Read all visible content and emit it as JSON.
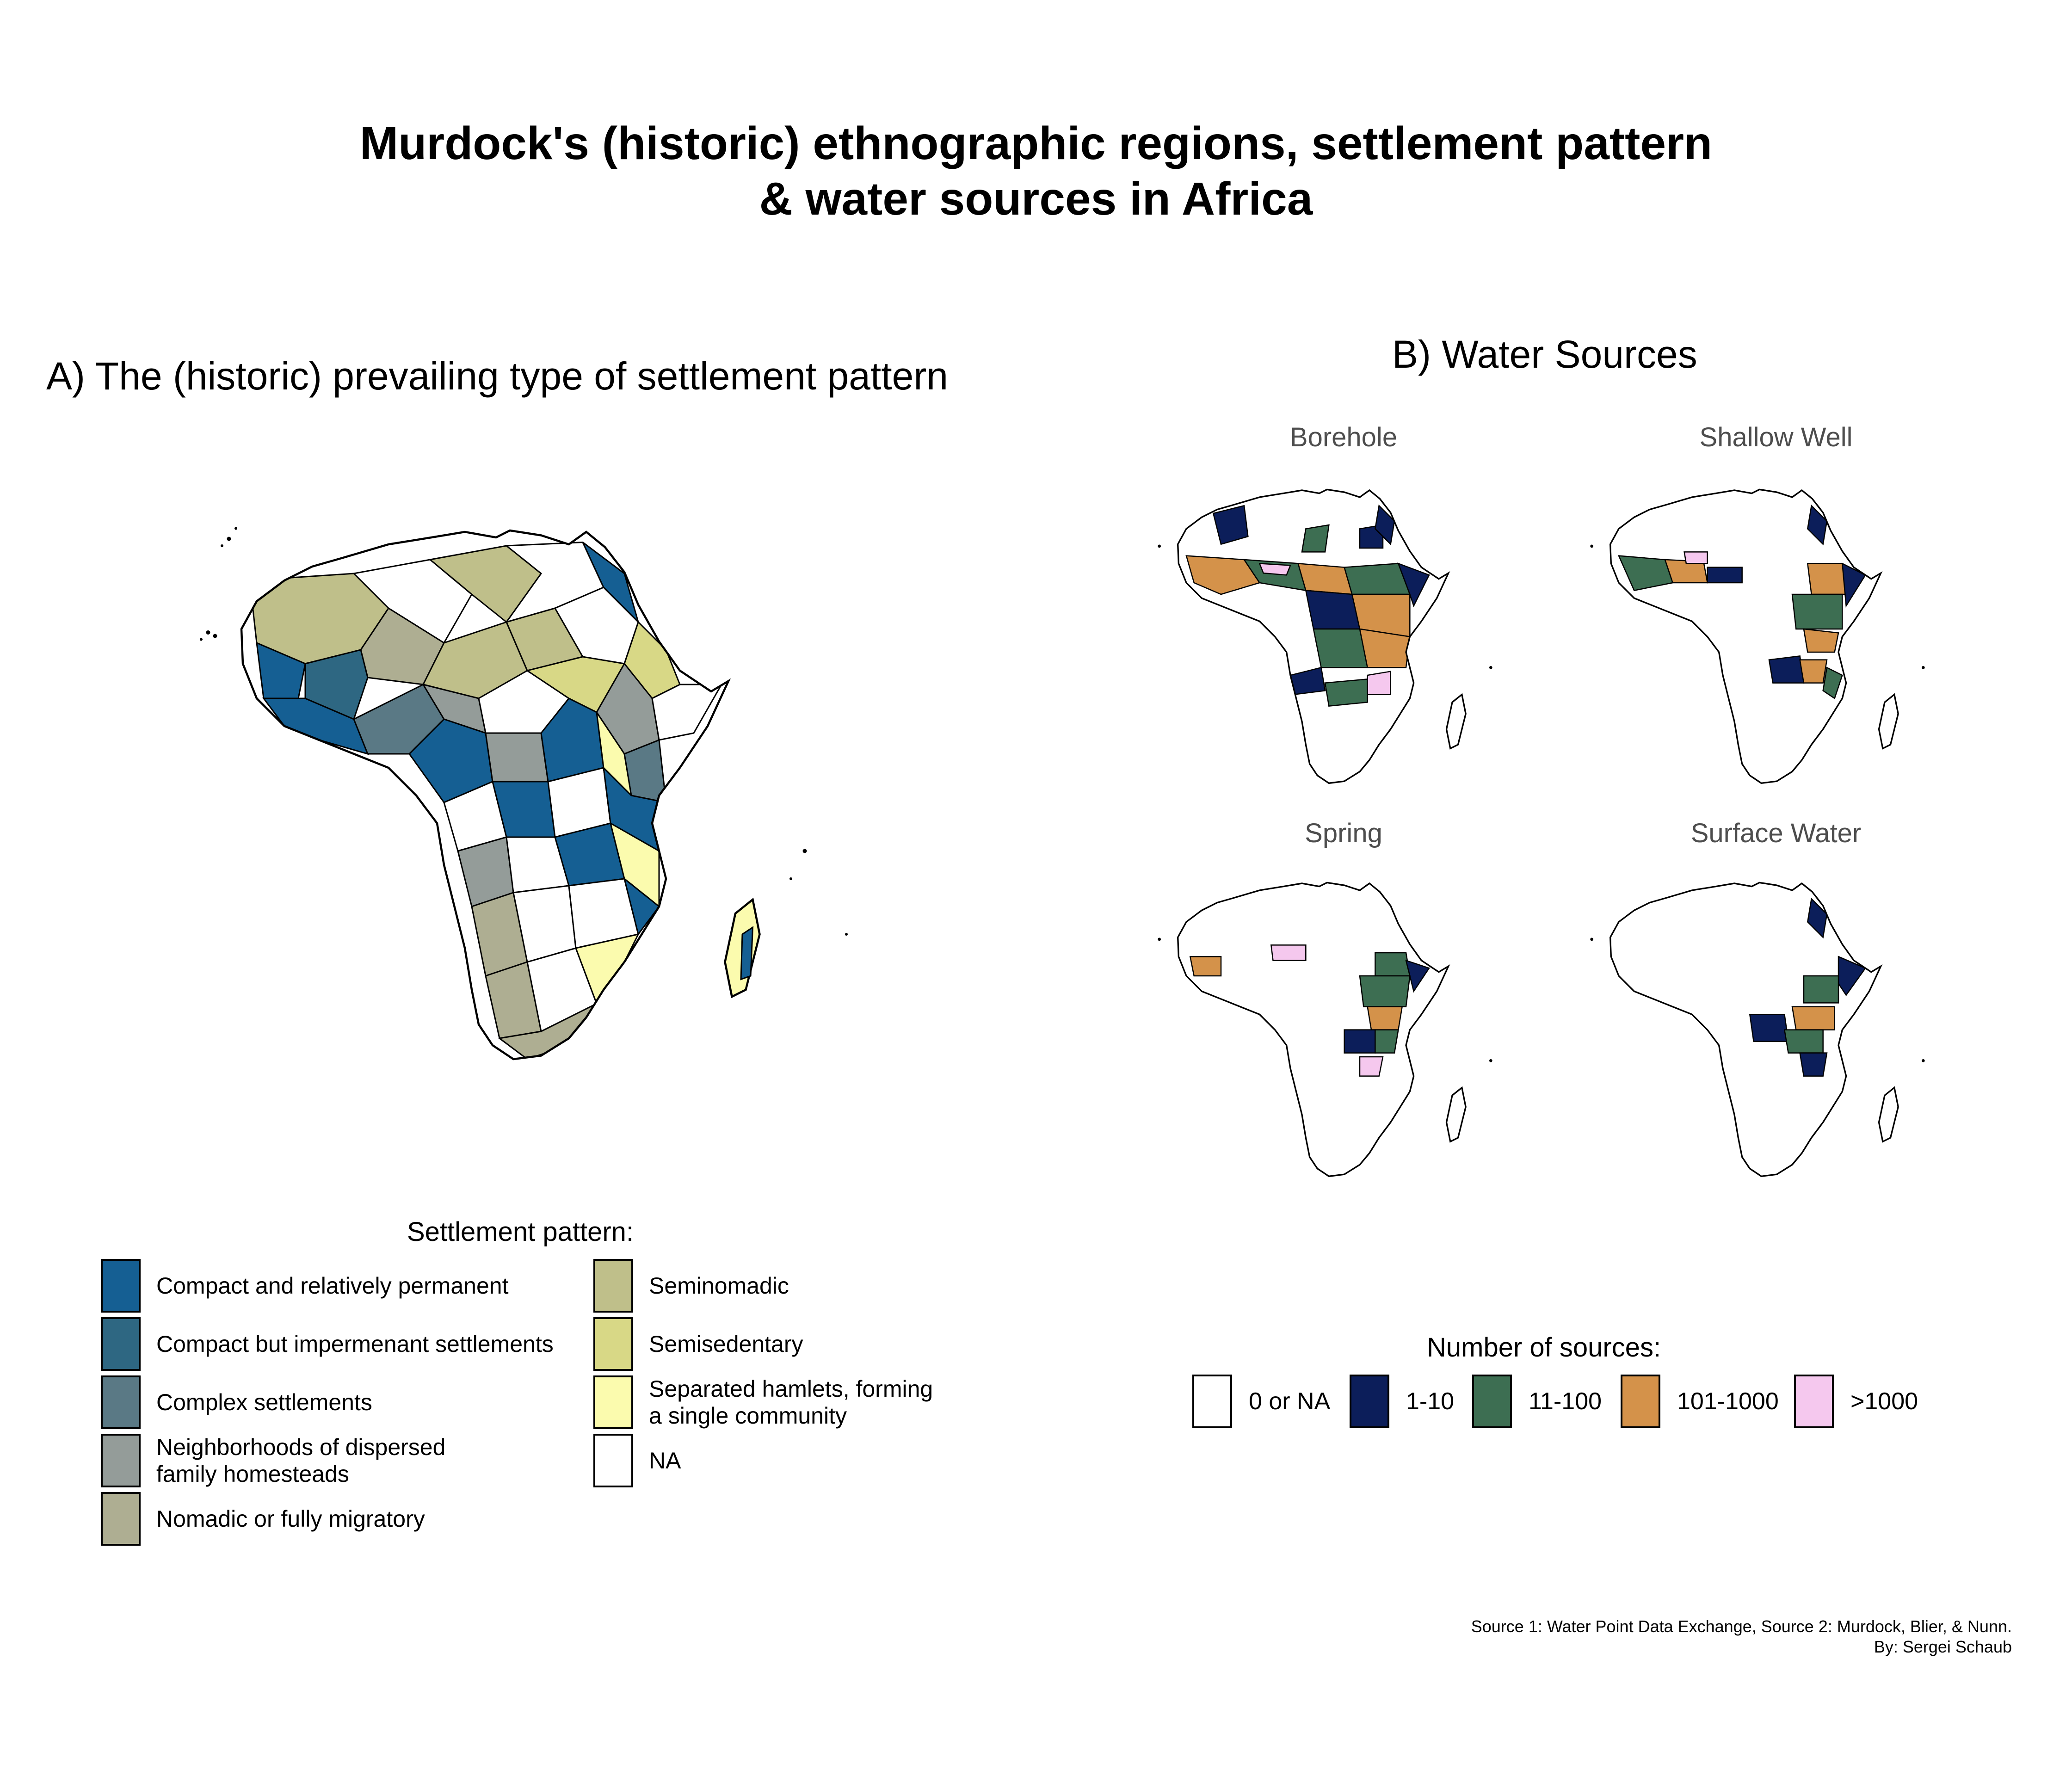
{
  "title_lines": [
    "Murdock's (historic) ethnographic regions, settlement  pattern",
    "& water sources in Africa"
  ],
  "panel_a": {
    "title": "A) The (historic) prevailing type of settlement pattern",
    "legend_title": "Settlement pattern:",
    "legend_items": [
      {
        "label": "Compact and relatively permanent",
        "color": "#155f93"
      },
      {
        "label": "Compact but impermenant settlements",
        "color": "#2e6782"
      },
      {
        "label": "Complex settlements",
        "color": "#5a7985"
      },
      {
        "label": "Neighborhoods of dispersed\nfamily homesteads",
        "color": "#949c99"
      },
      {
        "label": "Nomadic or fully migratory",
        "color": "#aeae92"
      },
      {
        "label": "Seminomadic",
        "color": "#bfbf8a"
      },
      {
        "label": "Semisedentary",
        "color": "#d8d886"
      },
      {
        "label": "Separated hamlets, forming\na single community",
        "color": "#fbfbae"
      },
      {
        "label": "NA",
        "color": "#ffffff"
      }
    ]
  },
  "panel_b": {
    "title": "B) Water Sources",
    "facets": [
      "Borehole",
      "Shallow Well",
      "Spring",
      "Surface Water"
    ],
    "legend_title": "Number of sources:",
    "legend_items": [
      {
        "label": "0 or NA",
        "color": "#ffffff"
      },
      {
        "label": "1-10",
        "color": "#0c1e5a"
      },
      {
        "label": "11-100",
        "color": "#3d6e52"
      },
      {
        "label": "101-1000",
        "color": "#d4924a"
      },
      {
        "label": ">1000",
        "color": "#f5c8ee"
      }
    ]
  },
  "credits": [
    "Source 1: Water Point Data Exchange, Source 2: Murdock, Blier, & Nunn.",
    "By: Sergei Schaub"
  ]
}
